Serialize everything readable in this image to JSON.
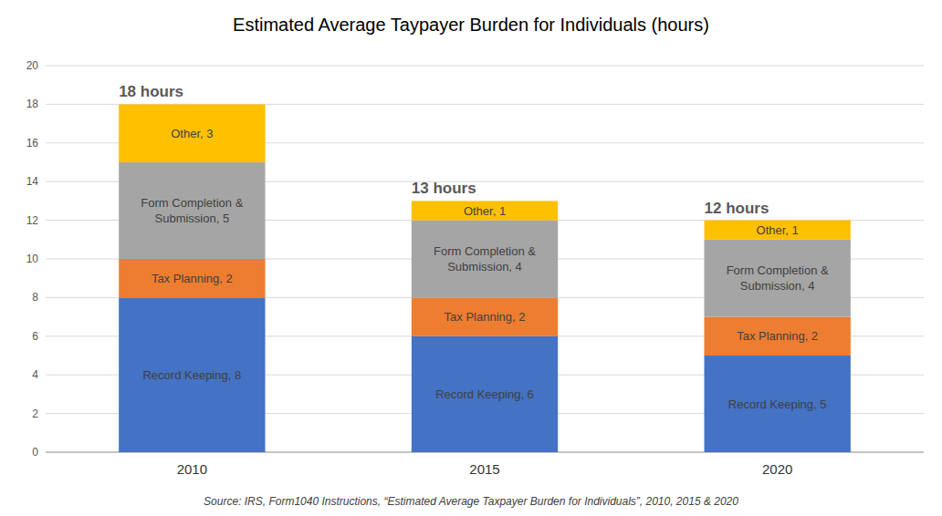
{
  "chart_data": {
    "type": "bar",
    "title": "Estimated Average Taypayer Burden for Individuals (hours)",
    "categories": [
      "2010",
      "2015",
      "2020"
    ],
    "stacked": true,
    "series": [
      {
        "name": "Record Keeping",
        "color": "#4472C4",
        "values": [
          8,
          6,
          5
        ],
        "value_labels": [
          "Record Keeping, 8",
          "Record Keeping, 6",
          "Record Keeping, 5"
        ]
      },
      {
        "name": "Tax Planning",
        "color": "#ED7D31",
        "values": [
          2,
          2,
          2
        ],
        "value_labels": [
          "Tax Planning, 2",
          "Tax Planning, 2",
          "Tax Planning, 2"
        ]
      },
      {
        "name": "Form Completion & Submission",
        "color": "#A5A5A5",
        "values": [
          5,
          4,
          4
        ],
        "value_labels": [
          "Form Completion &\nSubmission, 5",
          "Form Completion &\nSubmission, 4",
          "Form Completion &\nSubmission, 4"
        ]
      },
      {
        "name": "Other",
        "color": "#FFC000",
        "values": [
          3,
          1,
          1
        ],
        "value_labels": [
          "Other, 3",
          "Other, 1",
          "Other, 1"
        ]
      }
    ],
    "data_labels": true,
    "totals": [
      18,
      13,
      12
    ],
    "total_labels": [
      "18 hours",
      "13 hours",
      "12 hours"
    ],
    "ylim": [
      0,
      20
    ],
    "yticks": [
      0,
      2,
      4,
      6,
      8,
      10,
      12,
      14,
      16,
      18,
      20
    ],
    "grid": true,
    "source": "Source: IRS, Form1040 Instructions, “Estimated Average Taxpayer Burden for Individuals”, 2010, 2015 & 2020"
  }
}
